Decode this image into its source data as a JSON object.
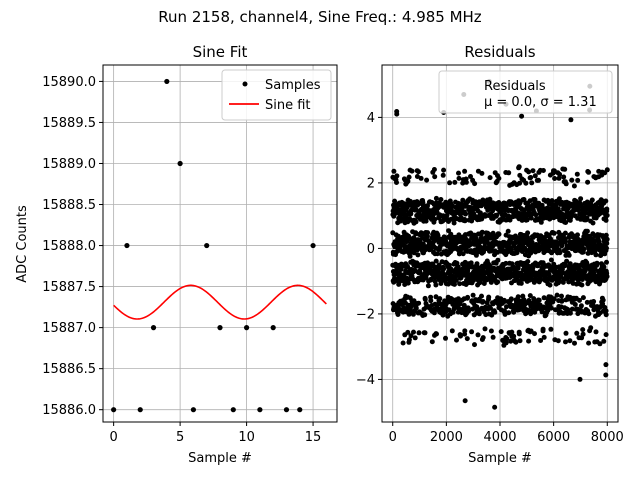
{
  "figure_title": "Run 2158, channel4, Sine Freq.: 4.985 MHz",
  "chart_data": [
    {
      "type": "scatter",
      "title": "Sine Fit",
      "xlabel": "Sample #",
      "ylabel": "ADC Counts",
      "xlim": [
        -0.8,
        16.8
      ],
      "ylim": [
        15885.85,
        15890.2
      ],
      "xticks": [
        0,
        5,
        10,
        15
      ],
      "xtick_labels": [
        "0",
        "5",
        "10",
        "15"
      ],
      "yticks": [
        15886.0,
        15886.5,
        15887.0,
        15887.5,
        15888.0,
        15888.5,
        15889.0,
        15889.5,
        15890.0
      ],
      "ytick_labels": [
        "15886.0",
        "15886.5",
        "15887.0",
        "15887.5",
        "15888.0",
        "15888.5",
        "15889.0",
        "15889.5",
        "15890.0"
      ],
      "grid": true,
      "legend": {
        "location": "upper right",
        "samples_label": "Samples",
        "fit_label": "Sine fit"
      },
      "samples": {
        "name": "Samples",
        "color": "#000000",
        "x": [
          0,
          1,
          2,
          3,
          4,
          5,
          6,
          7,
          8,
          9,
          10,
          11,
          12,
          13,
          14,
          15
        ],
        "y": [
          15886,
          15888,
          15886,
          15887,
          15890,
          15889,
          15886,
          15888,
          15887,
          15886,
          15887,
          15886,
          15887,
          15886,
          15886,
          15888
        ]
      },
      "fit": {
        "name": "Sine fit",
        "color": "#ff0000",
        "offset": 15887.31,
        "amplitude": 0.205,
        "period_samples": 8.05,
        "phase_peak_x": 5.8,
        "x_start": 0,
        "x_end": 16
      }
    },
    {
      "type": "scatter",
      "title": "Residuals",
      "xlabel": "Sample #",
      "ylabel": "",
      "xlim": [
        -400,
        8400
      ],
      "ylim": [
        -5.3,
        5.6
      ],
      "xticks": [
        0,
        2000,
        4000,
        6000,
        8000
      ],
      "xtick_labels": [
        "0",
        "2000",
        "4000",
        "6000",
        "8000"
      ],
      "yticks": [
        -4,
        -2,
        0,
        2,
        4
      ],
      "ytick_labels": [
        "−4",
        "−2",
        "0",
        "2",
        "4"
      ],
      "grid": true,
      "legend": {
        "location": "upper right",
        "label": "Residuals",
        "stats": "μ = 0.0, σ = 1.31"
      },
      "color": "#000000",
      "n_samples": 8000,
      "bands": [
        {
          "level": 4.15,
          "density": 0.006,
          "spread": 0.35
        },
        {
          "level": 2.2,
          "density": 0.14,
          "spread": 0.3
        },
        {
          "level": 1.15,
          "density": 0.9,
          "spread": 0.4
        },
        {
          "level": 0.15,
          "density": 1.0,
          "spread": 0.4
        },
        {
          "level": -0.75,
          "density": 1.0,
          "spread": 0.4
        },
        {
          "level": -1.75,
          "density": 0.55,
          "spread": 0.35
        },
        {
          "level": -2.7,
          "density": 0.13,
          "spread": 0.3
        },
        {
          "level": -3.8,
          "density": 0.006,
          "spread": 0.3
        }
      ],
      "outliers": [
        {
          "x": 150,
          "y": 4.1
        },
        {
          "x": 2650,
          "y": 4.7
        },
        {
          "x": 3600,
          "y": 5.1
        },
        {
          "x": 7350,
          "y": 4.95
        },
        {
          "x": 2700,
          "y": -4.65
        },
        {
          "x": 3800,
          "y": -4.85
        },
        {
          "x": 1900,
          "y": 4.15
        },
        {
          "x": 7950,
          "y": -3.55
        }
      ]
    }
  ]
}
